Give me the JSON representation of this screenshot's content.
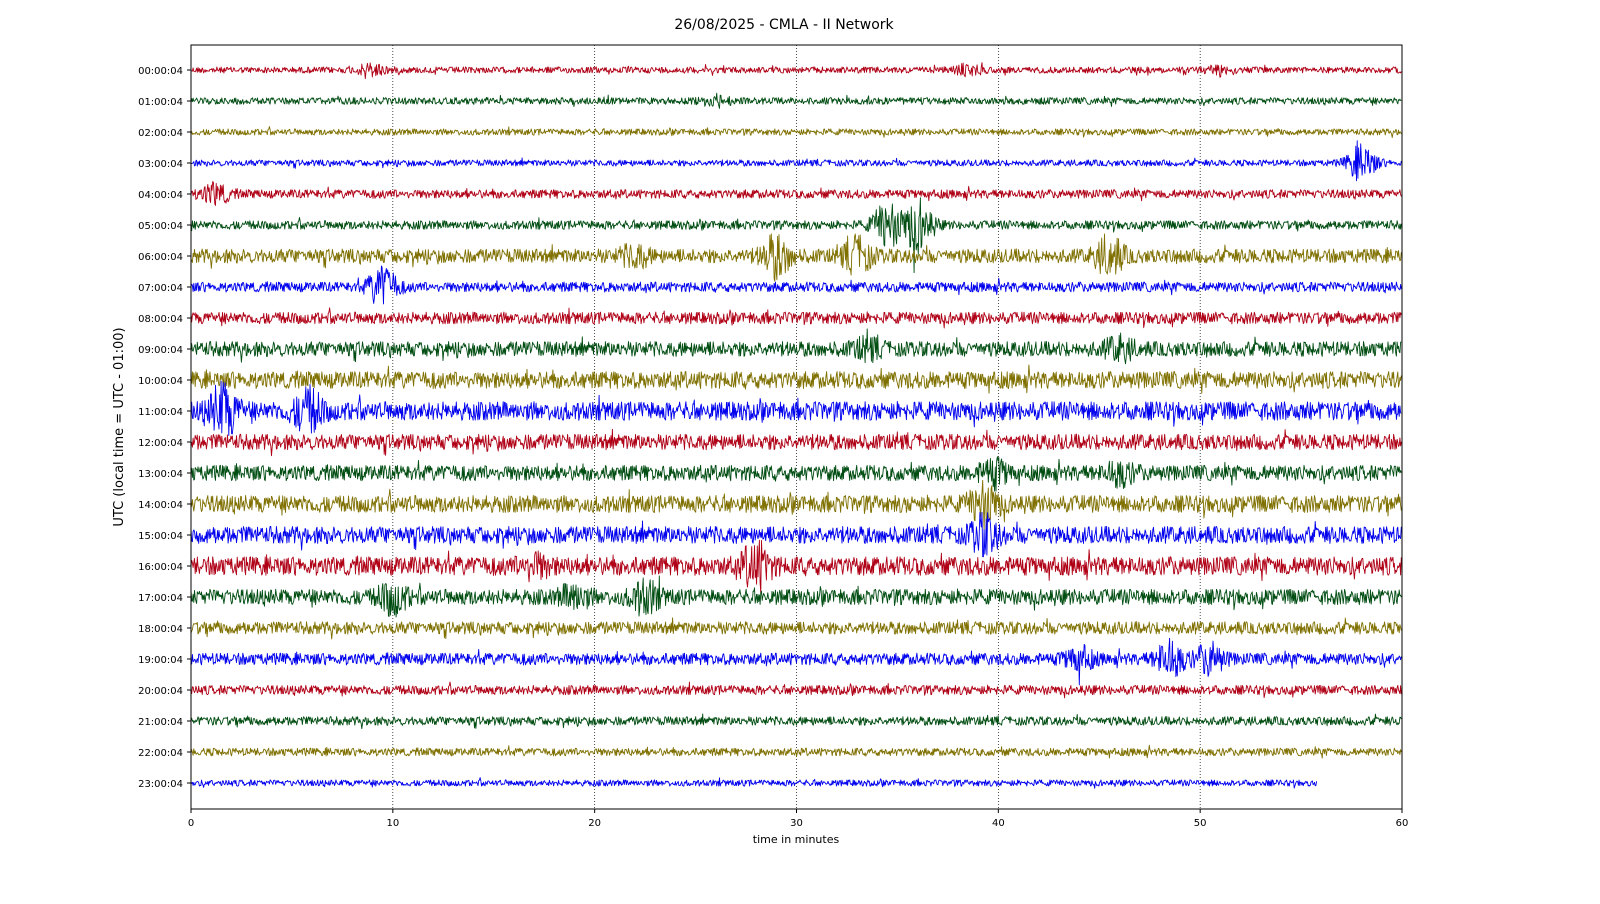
{
  "chart_data": {
    "type": "line",
    "title": "26/08/2025 - CMLA - II Network",
    "xlabel": "time in minutes",
    "ylabel": "UTC (local time = UTC - 01:00)",
    "xlim": [
      0,
      60
    ],
    "xticks": [
      "0",
      "10",
      "20",
      "30",
      "40",
      "50",
      "60"
    ],
    "grid": "vertical dotted lines at each x tick",
    "colors": [
      "#b00016",
      "#004d12",
      "#7f7000",
      "#0000ee"
    ],
    "series": [
      {
        "label": "00:00:04",
        "amp": 0.2,
        "end_minute": 60,
        "bursts": [
          {
            "t": 9,
            "a": 0.35
          },
          {
            "t": 38.5,
            "a": 0.3
          },
          {
            "t": 51,
            "a": 0.3
          }
        ]
      },
      {
        "label": "01:00:04",
        "amp": 0.22,
        "end_minute": 60,
        "bursts": [
          {
            "t": 26,
            "a": 0.3
          }
        ]
      },
      {
        "label": "02:00:04",
        "amp": 0.2,
        "end_minute": 60,
        "bursts": []
      },
      {
        "label": "03:00:04",
        "amp": 0.2,
        "end_minute": 60,
        "bursts": [
          {
            "t": 58,
            "a": 1.1
          }
        ]
      },
      {
        "label": "04:00:04",
        "amp": 0.28,
        "end_minute": 60,
        "bursts": [
          {
            "t": 1.2,
            "a": 0.6
          }
        ]
      },
      {
        "label": "05:00:04",
        "amp": 0.28,
        "end_minute": 60,
        "bursts": [
          {
            "t": 34.5,
            "a": 1.4
          },
          {
            "t": 36,
            "a": 1.6
          }
        ]
      },
      {
        "label": "06:00:04",
        "amp": 0.45,
        "end_minute": 60,
        "bursts": [
          {
            "t": 29,
            "a": 1.2
          },
          {
            "t": 33,
            "a": 1.0
          },
          {
            "t": 45.5,
            "a": 1.1
          },
          {
            "t": 22,
            "a": 0.6
          }
        ]
      },
      {
        "label": "07:00:04",
        "amp": 0.32,
        "end_minute": 60,
        "bursts": [
          {
            "t": 9.5,
            "a": 1.2
          }
        ]
      },
      {
        "label": "08:00:04",
        "amp": 0.38,
        "end_minute": 60,
        "bursts": []
      },
      {
        "label": "09:00:04",
        "amp": 0.48,
        "end_minute": 60,
        "bursts": [
          {
            "t": 46,
            "a": 0.6
          },
          {
            "t": 33.5,
            "a": 0.5
          }
        ]
      },
      {
        "label": "10:00:04",
        "amp": 0.55,
        "end_minute": 60,
        "bursts": []
      },
      {
        "label": "11:00:04",
        "amp": 0.6,
        "end_minute": 60,
        "bursts": [
          {
            "t": 1.6,
            "a": 1.5
          },
          {
            "t": 5.8,
            "a": 1.2
          }
        ]
      },
      {
        "label": "12:00:04",
        "amp": 0.5,
        "end_minute": 60,
        "bursts": []
      },
      {
        "label": "13:00:04",
        "amp": 0.5,
        "end_minute": 60,
        "bursts": [
          {
            "t": 39.8,
            "a": 0.7
          },
          {
            "t": 46,
            "a": 0.6
          }
        ]
      },
      {
        "label": "14:00:04",
        "amp": 0.55,
        "end_minute": 60,
        "bursts": [
          {
            "t": 39.3,
            "a": 1.2
          }
        ]
      },
      {
        "label": "15:00:04",
        "amp": 0.55,
        "end_minute": 60,
        "bursts": [
          {
            "t": 39.3,
            "a": 1.0
          }
        ]
      },
      {
        "label": "16:00:04",
        "amp": 0.6,
        "end_minute": 60,
        "bursts": [
          {
            "t": 28,
            "a": 1.3
          },
          {
            "t": 17,
            "a": 0.6
          }
        ]
      },
      {
        "label": "17:00:04",
        "amp": 0.5,
        "end_minute": 60,
        "bursts": [
          {
            "t": 10,
            "a": 0.9
          },
          {
            "t": 22.5,
            "a": 0.9
          },
          {
            "t": 19,
            "a": 0.7
          }
        ]
      },
      {
        "label": "18:00:04",
        "amp": 0.4,
        "end_minute": 60,
        "bursts": []
      },
      {
        "label": "19:00:04",
        "amp": 0.38,
        "end_minute": 60,
        "bursts": [
          {
            "t": 48.5,
            "a": 1.1
          },
          {
            "t": 44,
            "a": 0.7
          },
          {
            "t": 50.5,
            "a": 0.9
          }
        ]
      },
      {
        "label": "20:00:04",
        "amp": 0.3,
        "end_minute": 60,
        "bursts": []
      },
      {
        "label": "21:00:04",
        "amp": 0.28,
        "end_minute": 60,
        "bursts": []
      },
      {
        "label": "22:00:04",
        "amp": 0.25,
        "end_minute": 60,
        "bursts": []
      },
      {
        "label": "23:00:04",
        "amp": 0.2,
        "end_minute": 55.8,
        "bursts": []
      }
    ]
  }
}
